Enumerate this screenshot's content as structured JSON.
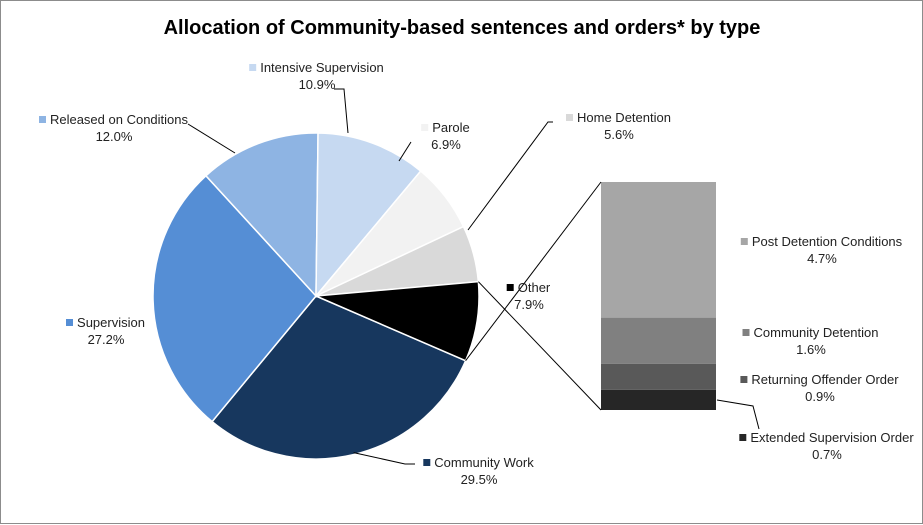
{
  "chart_data": {
    "type": "pie",
    "title": "Allocation of Community-based sentences and orders* by type",
    "slices": [
      {
        "label": "Community Work",
        "value": 29.5,
        "pct_text": "29.5%",
        "color": "#17375e"
      },
      {
        "label": "Supervision",
        "value": 27.2,
        "pct_text": "27.2%",
        "color": "#558ed5"
      },
      {
        "label": "Released on Conditions",
        "value": 12.0,
        "pct_text": "12.0%",
        "color": "#8eb4e3"
      },
      {
        "label": "Intensive Supervision",
        "value": 10.9,
        "pct_text": "10.9%",
        "color": "#c6d9f1"
      },
      {
        "label": "Parole",
        "value": 6.9,
        "pct_text": "6.9%",
        "color": "#f2f2f2"
      },
      {
        "label": "Home Detention",
        "value": 5.6,
        "pct_text": "5.6%",
        "color": "#d9d9d9"
      },
      {
        "label": "Other",
        "value": 7.9,
        "pct_text": "7.9%",
        "color": "#000000"
      }
    ],
    "breakdown": {
      "of": "Other",
      "items": [
        {
          "label": "Post Detention Conditions",
          "value": 4.7,
          "pct_text": "4.7%",
          "color": "#a6a6a6"
        },
        {
          "label": "Community Detention",
          "value": 1.6,
          "pct_text": "1.6%",
          "color": "#808080"
        },
        {
          "label": "Returning Offender Order",
          "value": 0.9,
          "pct_text": "0.9%",
          "color": "#595959"
        },
        {
          "label": "Extended Supervision Order",
          "value": 0.7,
          "pct_text": "0.7%",
          "color": "#262626"
        }
      ]
    },
    "legend": "none"
  }
}
